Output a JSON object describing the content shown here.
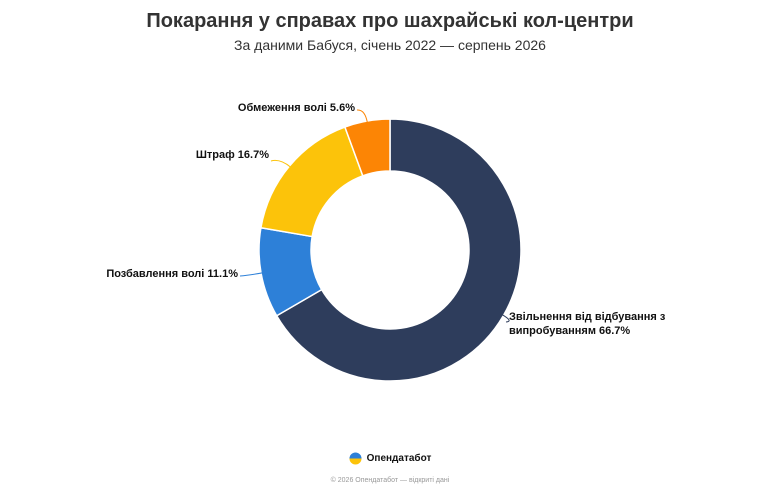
{
  "title": "Покарання у справах про шахрайські кол-центри",
  "subtitle": "За даними Бабуся, січень 2022 — серпень 2026",
  "chart_data": {
    "type": "pie",
    "donut": true,
    "title": "Покарання у справах про шахрайські кол-центри",
    "subtitle": "За даними Бабуся, січень 2022 — серпень 2026",
    "slices": [
      {
        "label": "Звільнення від відбування з випробуванням",
        "value": 66.7,
        "display": "66.7%",
        "color": "#2e3d5c"
      },
      {
        "label": "Позбавлення волі",
        "value": 11.1,
        "display": "11.1%",
        "color": "#2d80d8"
      },
      {
        "label": "Штраф",
        "value": 16.7,
        "display": "16.7%",
        "color": "#fcc30a"
      },
      {
        "label": "Обмеження волі",
        "value": 5.6,
        "display": "5.6%",
        "color": "#fc8505"
      }
    ],
    "labels": [
      {
        "lines": [
          "Звільнення від відбування з",
          "випробуванням 66.7%"
        ]
      },
      {
        "lines": [
          "Позбавлення волі 11.1%"
        ]
      },
      {
        "lines": [
          "Штраф 16.7%"
        ]
      },
      {
        "lines": [
          "Обмеження волі 5.6%"
        ]
      }
    ]
  },
  "brand": {
    "name": "Опендатабот",
    "logo_colors": [
      "#2d80d8",
      "#fcc30a"
    ]
  },
  "footer": "© 2026 Опендатабот — відкриті дані"
}
